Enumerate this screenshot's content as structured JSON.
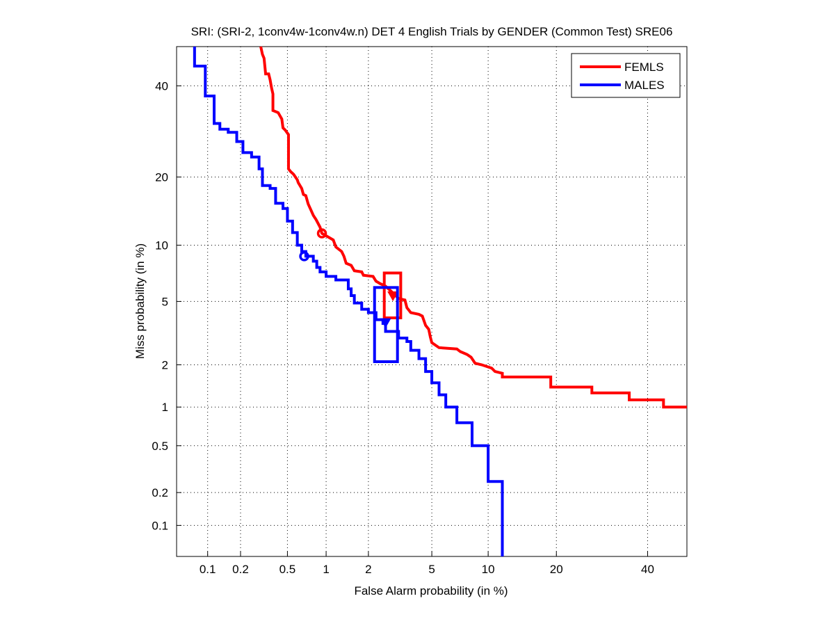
{
  "chart_data": {
    "type": "line",
    "title": "SRI: (SRI-2, 1conv4w-1conv4w.n) DET 4 English Trials by GENDER (Common Test) SRE06",
    "xlabel": "False Alarm probability (in %)",
    "ylabel": "Miss probability (in %)",
    "xscale": "probit",
    "yscale": "probit",
    "xlim": [
      0.05,
      50
    ],
    "ylim": [
      0.05,
      50
    ],
    "grid": true,
    "xticks": [
      0.1,
      0.2,
      0.5,
      1,
      2,
      5,
      10,
      20,
      40
    ],
    "xtick_labels": [
      "0.1",
      "0.2",
      "0.5",
      "1",
      "2",
      "5",
      "10",
      "20",
      "40"
    ],
    "yticks": [
      0.1,
      0.2,
      0.5,
      1,
      2,
      5,
      10,
      20,
      40
    ],
    "ytick_labels": [
      "0.1",
      "0.2",
      "0.5",
      "1",
      "2",
      "5",
      "10",
      "20",
      "40"
    ],
    "legend": {
      "placement": "top-right",
      "entries": [
        "FEMLS",
        "MALES"
      ]
    },
    "series": [
      {
        "name": "FEMLS",
        "color": "#ff0000",
        "points": [
          [
            0.3,
            50
          ],
          [
            0.31,
            48
          ],
          [
            0.32,
            47
          ],
          [
            0.33,
            43
          ],
          [
            0.35,
            43
          ],
          [
            0.36,
            41.5
          ],
          [
            0.37,
            39.5
          ],
          [
            0.38,
            38
          ],
          [
            0.38,
            34
          ],
          [
            0.42,
            33.5
          ],
          [
            0.45,
            32
          ],
          [
            0.46,
            30
          ],
          [
            0.48,
            29.5
          ],
          [
            0.51,
            28.5
          ],
          [
            0.51,
            21.5
          ],
          [
            0.53,
            21
          ],
          [
            0.56,
            20.5
          ],
          [
            0.6,
            19.5
          ],
          [
            0.61,
            19
          ],
          [
            0.65,
            18
          ],
          [
            0.67,
            17
          ],
          [
            0.7,
            16.8
          ],
          [
            0.73,
            15.5
          ],
          [
            0.77,
            14.5
          ],
          [
            0.8,
            13.8
          ],
          [
            0.84,
            13.2
          ],
          [
            0.9,
            12.2
          ],
          [
            0.93,
            11.4
          ],
          [
            1.0,
            11.1
          ],
          [
            1.13,
            10.6
          ],
          [
            1.18,
            9.8
          ],
          [
            1.3,
            9.3
          ],
          [
            1.35,
            8.8
          ],
          [
            1.4,
            8.1
          ],
          [
            1.52,
            7.9
          ],
          [
            1.6,
            7.4
          ],
          [
            1.8,
            7.3
          ],
          [
            1.85,
            7.0
          ],
          [
            2.15,
            6.9
          ],
          [
            2.25,
            6.5
          ],
          [
            2.4,
            6.3
          ],
          [
            2.6,
            6.1
          ],
          [
            2.9,
            5.6
          ],
          [
            3.15,
            5.2
          ],
          [
            3.45,
            5.1
          ],
          [
            3.55,
            4.6
          ],
          [
            3.75,
            4.3
          ],
          [
            4.2,
            4.2
          ],
          [
            4.4,
            4.1
          ],
          [
            4.6,
            3.6
          ],
          [
            4.8,
            3.4
          ],
          [
            4.9,
            3.05
          ],
          [
            5.0,
            2.8
          ],
          [
            5.5,
            2.6
          ],
          [
            6.9,
            2.55
          ],
          [
            7.2,
            2.45
          ],
          [
            7.8,
            2.35
          ],
          [
            8.2,
            2.25
          ],
          [
            8.6,
            2.05
          ],
          [
            9.3,
            2.0
          ],
          [
            10.4,
            1.9
          ],
          [
            10.8,
            1.8
          ],
          [
            11.7,
            1.75
          ],
          [
            11.7,
            1.65
          ],
          [
            19,
            1.65
          ],
          [
            19,
            1.4
          ],
          [
            27,
            1.4
          ],
          [
            27,
            1.27
          ],
          [
            35.5,
            1.27
          ],
          [
            35.5,
            1.13
          ],
          [
            44,
            1.13
          ],
          [
            44,
            1.0
          ],
          [
            50,
            1.0
          ]
        ],
        "min_dcf": [
          0.93,
          11.4
        ],
        "act_dcf": [
          2.9,
          5.4
        ],
        "ci_box": {
          "fa": [
            2.55,
            3.25
          ],
          "miss": [
            4.0,
            7.2
          ]
        }
      },
      {
        "name": "MALES",
        "color": "#0000ff",
        "points": [
          [
            0.075,
            50
          ],
          [
            0.075,
            45
          ],
          [
            0.095,
            45
          ],
          [
            0.095,
            37.5
          ],
          [
            0.115,
            37.5
          ],
          [
            0.115,
            31
          ],
          [
            0.13,
            31
          ],
          [
            0.13,
            29.7
          ],
          [
            0.155,
            29.7
          ],
          [
            0.155,
            29
          ],
          [
            0.185,
            29
          ],
          [
            0.185,
            27
          ],
          [
            0.21,
            27
          ],
          [
            0.21,
            24.7
          ],
          [
            0.25,
            24.7
          ],
          [
            0.25,
            23.8
          ],
          [
            0.29,
            23.8
          ],
          [
            0.29,
            21.5
          ],
          [
            0.31,
            21.5
          ],
          [
            0.31,
            18.5
          ],
          [
            0.36,
            18.5
          ],
          [
            0.36,
            18
          ],
          [
            0.4,
            18
          ],
          [
            0.4,
            15.6
          ],
          [
            0.46,
            15.6
          ],
          [
            0.46,
            14.8
          ],
          [
            0.5,
            14.8
          ],
          [
            0.5,
            13
          ],
          [
            0.55,
            13
          ],
          [
            0.55,
            11.5
          ],
          [
            0.6,
            11.5
          ],
          [
            0.6,
            10
          ],
          [
            0.65,
            10
          ],
          [
            0.65,
            9.3
          ],
          [
            0.7,
            9.3
          ],
          [
            0.7,
            8.8
          ],
          [
            0.8,
            8.8
          ],
          [
            0.8,
            8.3
          ],
          [
            0.85,
            8.3
          ],
          [
            0.85,
            7.7
          ],
          [
            0.9,
            7.7
          ],
          [
            0.9,
            7.3
          ],
          [
            1.0,
            7.3
          ],
          [
            1.0,
            6.9
          ],
          [
            1.18,
            6.9
          ],
          [
            1.18,
            6.6
          ],
          [
            1.45,
            6.6
          ],
          [
            1.45,
            5.9
          ],
          [
            1.52,
            5.9
          ],
          [
            1.52,
            5.4
          ],
          [
            1.6,
            5.4
          ],
          [
            1.6,
            4.9
          ],
          [
            1.8,
            4.9
          ],
          [
            1.8,
            4.5
          ],
          [
            2.0,
            4.5
          ],
          [
            2.0,
            4.3
          ],
          [
            2.25,
            4.3
          ],
          [
            2.25,
            3.9
          ],
          [
            2.5,
            3.9
          ],
          [
            2.5,
            3.7
          ],
          [
            2.6,
            3.7
          ],
          [
            2.6,
            3.3
          ],
          [
            3.15,
            3.3
          ],
          [
            3.15,
            3.0
          ],
          [
            3.55,
            3.0
          ],
          [
            3.55,
            2.85
          ],
          [
            3.75,
            2.85
          ],
          [
            3.75,
            2.5
          ],
          [
            4.2,
            2.5
          ],
          [
            4.2,
            2.2
          ],
          [
            4.6,
            2.2
          ],
          [
            4.6,
            1.8
          ],
          [
            5.0,
            1.8
          ],
          [
            5.0,
            1.5
          ],
          [
            5.5,
            1.5
          ],
          [
            5.5,
            1.23
          ],
          [
            6.0,
            1.23
          ],
          [
            6.0,
            1.0
          ],
          [
            6.9,
            1.0
          ],
          [
            6.9,
            0.76
          ],
          [
            8.3,
            0.76
          ],
          [
            8.3,
            0.5
          ],
          [
            10,
            0.5
          ],
          [
            10,
            0.25
          ],
          [
            11.7,
            0.25
          ],
          [
            11.7,
            0.05
          ]
        ],
        "min_dcf": [
          0.68,
          8.8
        ],
        "act_dcf": [
          2.6,
          3.75
        ],
        "ci_box": {
          "fa": [
            2.2,
            3.1
          ],
          "miss": [
            2.1,
            6.0
          ]
        }
      }
    ]
  }
}
